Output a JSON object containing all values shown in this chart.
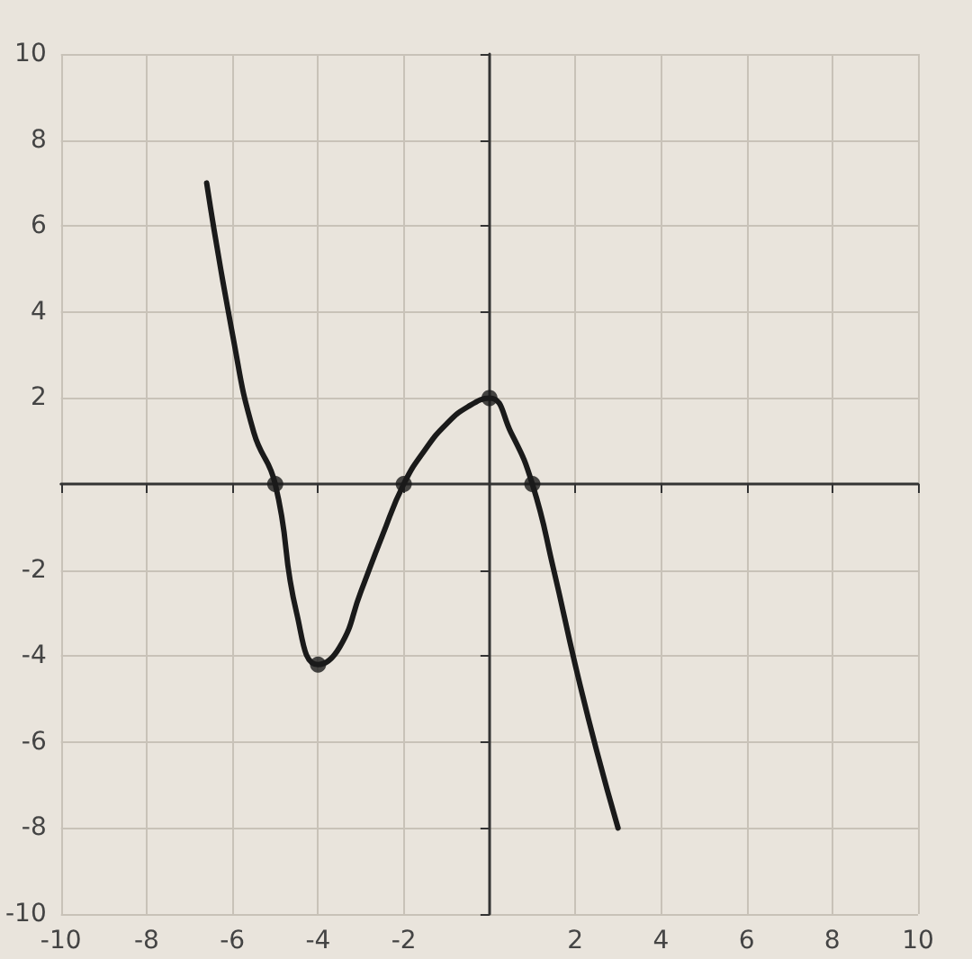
{
  "chart_data": {
    "type": "line",
    "xlim": [
      -10,
      10
    ],
    "ylim": [
      -10,
      10
    ],
    "xticks": [
      -10,
      -8,
      -6,
      -4,
      -2,
      2,
      4,
      6,
      8,
      10
    ],
    "yticks": [
      -10,
      -8,
      -6,
      -4,
      -2,
      2,
      4,
      6,
      8,
      10
    ],
    "grid": true,
    "line_style": "solid",
    "series": [
      {
        "color": "#1a1a1a",
        "x": [
          -6.6,
          -6,
          -5.5,
          -5,
          -4.5,
          -4,
          -3.5,
          -3,
          -2.5,
          -2,
          -1.5,
          -1,
          -0.5,
          0,
          0.5,
          1,
          1.5,
          2,
          2.5,
          3
        ],
        "values": [
          7,
          3.5,
          1.2,
          0,
          -3,
          -4.2,
          -3.8,
          -2.5,
          -1.2,
          0,
          0.8,
          1.4,
          1.8,
          2,
          1.2,
          0,
          -2,
          -4.2,
          -6.2,
          -8
        ]
      },
      {
        "type": "scatter",
        "color": "#1a1a1a",
        "marker": "circle",
        "x": [
          -5,
          -4,
          -2,
          0,
          1
        ],
        "values": [
          0,
          -4.2,
          0,
          2,
          0
        ]
      }
    ]
  }
}
